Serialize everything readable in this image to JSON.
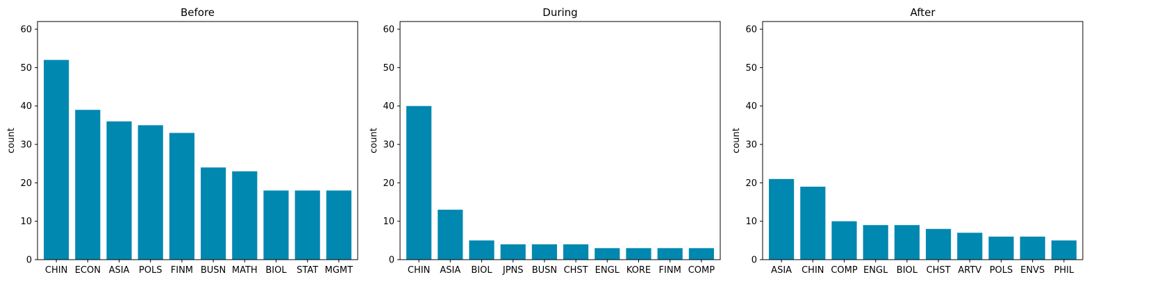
{
  "chart_data": [
    {
      "type": "bar",
      "title": "Before",
      "xlabel": "",
      "ylabel": "count",
      "ylim": [
        0,
        62
      ],
      "yticks": [
        0,
        10,
        20,
        30,
        40,
        50,
        60
      ],
      "grid": false,
      "color": "#0088b0",
      "categories": [
        "CHIN",
        "ECON",
        "ASIA",
        "POLS",
        "FINM",
        "BUSN",
        "MATH",
        "BIOL",
        "STAT",
        "MGMT"
      ],
      "values": [
        52,
        39,
        36,
        35,
        33,
        24,
        23,
        18,
        18,
        18
      ]
    },
    {
      "type": "bar",
      "title": "During",
      "xlabel": "",
      "ylabel": "count",
      "ylim": [
        0,
        62
      ],
      "yticks": [
        0,
        10,
        20,
        30,
        40,
        50,
        60
      ],
      "grid": false,
      "color": "#0088b0",
      "categories": [
        "CHIN",
        "ASIA",
        "BIOL",
        "JPNS",
        "BUSN",
        "CHST",
        "ENGL",
        "KORE",
        "FINM",
        "COMP"
      ],
      "values": [
        40,
        13,
        5,
        4,
        4,
        4,
        3,
        3,
        3,
        3
      ]
    },
    {
      "type": "bar",
      "title": "After",
      "xlabel": "",
      "ylabel": "count",
      "ylim": [
        0,
        62
      ],
      "yticks": [
        0,
        10,
        20,
        30,
        40,
        50,
        60
      ],
      "grid": false,
      "color": "#0088b0",
      "categories": [
        "ASIA",
        "CHIN",
        "COMP",
        "ENGL",
        "BIOL",
        "CHST",
        "ARTV",
        "POLS",
        "ENVS",
        "PHIL"
      ],
      "values": [
        21,
        19,
        10,
        9,
        9,
        8,
        7,
        6,
        6,
        5
      ]
    }
  ]
}
